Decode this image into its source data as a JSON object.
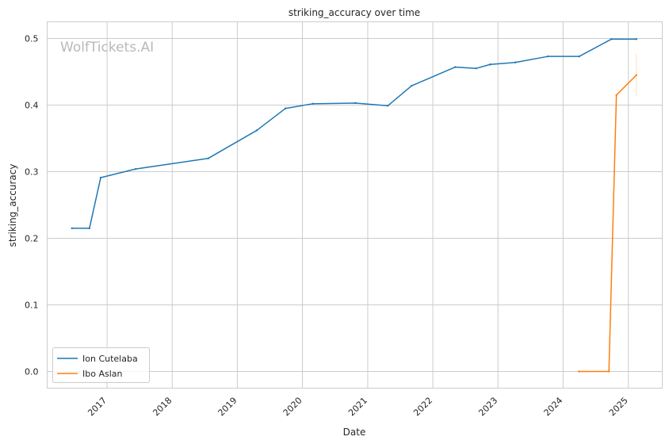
{
  "chart_data": {
    "type": "line",
    "title": "striking_accuracy over time",
    "xlabel": "Date",
    "ylabel": "striking_accuracy",
    "watermark": "WolfTickets.AI",
    "xlim": [
      "2016-01-31",
      "2025-07-10"
    ],
    "ylim": [
      -0.025,
      0.525
    ],
    "x_ticks": [
      {
        "date": "2017-01-01",
        "label": "2017"
      },
      {
        "date": "2018-01-01",
        "label": "2018"
      },
      {
        "date": "2019-01-01",
        "label": "2019"
      },
      {
        "date": "2020-01-01",
        "label": "2020"
      },
      {
        "date": "2021-01-01",
        "label": "2021"
      },
      {
        "date": "2022-01-01",
        "label": "2022"
      },
      {
        "date": "2023-01-01",
        "label": "2023"
      },
      {
        "date": "2024-01-01",
        "label": "2024"
      },
      {
        "date": "2025-01-01",
        "label": "2025"
      }
    ],
    "y_ticks": [
      {
        "value": 0.0,
        "label": "0.0"
      },
      {
        "value": 0.1,
        "label": "0.1"
      },
      {
        "value": 0.2,
        "label": "0.2"
      },
      {
        "value": 0.3,
        "label": "0.3"
      },
      {
        "value": 0.4,
        "label": "0.4"
      },
      {
        "value": 0.5,
        "label": "0.5"
      }
    ],
    "grid": true,
    "legend_position": "lower-left",
    "series": [
      {
        "name": "Ion Cutelaba",
        "color": "#1f77b4",
        "points": [
          {
            "x": "2016-06-18",
            "y": 0.215
          },
          {
            "x": "2016-09-24",
            "y": 0.215
          },
          {
            "x": "2016-11-26",
            "y": 0.291
          },
          {
            "x": "2017-06-10",
            "y": 0.304
          },
          {
            "x": "2018-07-22",
            "y": 0.32
          },
          {
            "x": "2019-04-20",
            "y": 0.362
          },
          {
            "x": "2019-09-28",
            "y": 0.395
          },
          {
            "x": "2020-02-29",
            "y": 0.402
          },
          {
            "x": "2020-10-24",
            "y": 0.403
          },
          {
            "x": "2021-04-24",
            "y": 0.399
          },
          {
            "x": "2021-09-04",
            "y": 0.429
          },
          {
            "x": "2022-05-07",
            "y": 0.457
          },
          {
            "x": "2022-08-31",
            "y": 0.455
          },
          {
            "x": "2022-11-19",
            "y": 0.461
          },
          {
            "x": "2023-04-08",
            "y": 0.464
          },
          {
            "x": "2023-10-07",
            "y": 0.473
          },
          {
            "x": "2024-03-31",
            "y": 0.473
          },
          {
            "x": "2024-09-28",
            "y": 0.499
          },
          {
            "x": "2025-02-15",
            "y": 0.499
          }
        ]
      },
      {
        "name": "Ibo Aslan",
        "color": "#ff7f0e",
        "points": [
          {
            "x": "2024-03-30",
            "y": 0.0
          },
          {
            "x": "2024-09-14",
            "y": 0.0
          },
          {
            "x": "2024-10-26",
            "y": 0.415
          },
          {
            "x": "2025-02-15",
            "y": 0.445
          }
        ],
        "error_band": {
          "x": "2025-02-15",
          "y_low": 0.413,
          "y_high": 0.477
        }
      }
    ]
  }
}
